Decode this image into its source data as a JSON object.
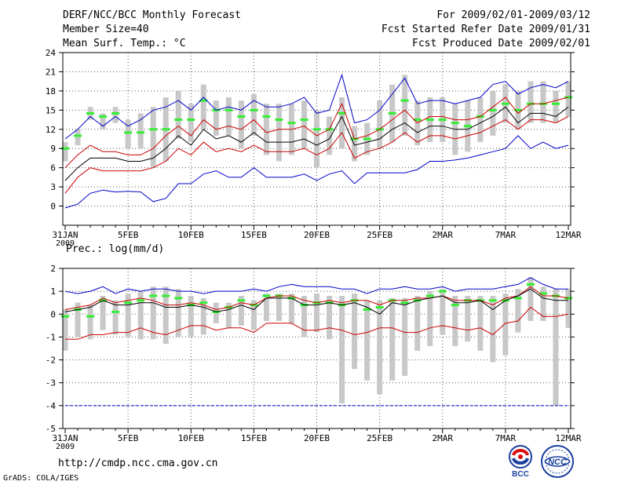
{
  "header": {
    "title": "DERF/NCC/BCC Monthly Forecast",
    "member_size": "Member Size=40",
    "variable": "Mean Surf. Temp.: °C",
    "period": "For 2009/02/01-2009/03/12",
    "start_refer": "Fcst Started Refer Date 2009/01/31",
    "produced": "Fcst Produced Date 2009/02/01"
  },
  "footer": {
    "url": "http://cmdp.ncc.cma.gov.cn",
    "grads": "GrADS: COLA/IGES",
    "logo_left_text": "BCC",
    "logo_right_text": "NCC"
  },
  "colors": {
    "blue": "#0000cc",
    "red": "#cc0000",
    "black": "#000000",
    "green": "#33ee33",
    "box": "#c8c8c8",
    "grid": "#555555"
  },
  "chart_data": [
    {
      "type": "line",
      "title": "Mean Surf. Temp.: °C",
      "ylabel": "°C",
      "ylim": [
        -3,
        24
      ],
      "yticks": [
        0,
        3,
        6,
        9,
        12,
        15,
        18,
        21,
        24
      ],
      "x_days": 40,
      "xtick_labels": [
        "31JAN",
        "5FEB",
        "10FEB",
        "15FEB",
        "20FEB",
        "25FEB",
        "2MAR",
        "7MAR",
        "12MAR"
      ],
      "xtick_days": [
        0,
        5,
        10,
        15,
        20,
        25,
        30,
        35,
        40
      ],
      "year_label": "2009",
      "series": [
        {
          "name": "max",
          "color": "blue",
          "values": [
            10.5,
            12,
            14,
            12.5,
            14,
            12.5,
            13.5,
            15,
            15.5,
            16.5,
            15,
            17,
            15,
            15.5,
            15,
            16.5,
            15.5,
            15.5,
            16,
            17,
            14.5,
            15,
            20.5,
            13,
            13.5,
            15,
            17.5,
            20,
            16,
            16.5,
            16.5,
            16,
            16.5,
            17,
            19,
            19.5,
            17.5,
            18.5,
            19,
            18.5,
            19.5
          ]
        },
        {
          "name": "p90",
          "color": "red",
          "values": [
            6,
            8,
            9.5,
            8.5,
            8.5,
            8,
            8,
            9,
            11,
            12.5,
            11,
            13.5,
            12,
            12.5,
            12,
            13.5,
            11.5,
            12,
            12,
            12.5,
            11,
            12,
            16,
            10.5,
            11,
            12,
            13.5,
            15,
            13,
            14,
            14,
            13.5,
            13.5,
            14,
            15.5,
            17,
            14.5,
            16,
            16,
            16.5,
            17
          ]
        },
        {
          "name": "mean",
          "color": "black",
          "values": [
            4,
            6,
            7.5,
            7.5,
            7.5,
            7,
            7,
            7.5,
            9,
            11,
            9.5,
            12,
            10.5,
            11,
            10,
            11.5,
            10,
            10,
            10,
            10.5,
            9.5,
            10.5,
            14,
            9.5,
            10,
            10.5,
            12,
            13,
            11.5,
            12.5,
            12.5,
            12,
            12,
            13,
            14,
            15.5,
            13,
            14.5,
            14.5,
            14,
            15.5
          ]
        },
        {
          "name": "p10",
          "color": "red",
          "values": [
            2,
            4.5,
            6,
            5.5,
            5.5,
            5.5,
            5.5,
            6,
            7,
            9,
            8,
            10,
            8.5,
            9,
            8.5,
            9.5,
            8.5,
            8.5,
            8.5,
            9,
            8,
            9,
            11.5,
            7.5,
            8.5,
            9,
            10,
            11.5,
            10,
            11,
            11,
            10.5,
            11,
            11.5,
            12.5,
            13.5,
            12,
            13.5,
            13.5,
            13,
            14
          ]
        },
        {
          "name": "min",
          "color": "blue",
          "values": [
            -0.3,
            0.3,
            2,
            2.5,
            2.2,
            2.3,
            2.2,
            0.7,
            1.2,
            3.5,
            3.5,
            5,
            5.5,
            4.5,
            4.5,
            6,
            4.5,
            4.5,
            4.5,
            5,
            4,
            5,
            5.5,
            3.5,
            5.2,
            5.2,
            5.2,
            5.2,
            5.7,
            7,
            7,
            7.2,
            7.5,
            8,
            8.5,
            9,
            11,
            9,
            10,
            9,
            9.5
          ]
        }
      ],
      "boxes": [
        {
          "low": 7,
          "high": 10,
          "median": 9
        },
        {
          "low": 9.5,
          "high": 12,
          "median": 11
        },
        {
          "low": 13.5,
          "high": 15.5,
          "median": 14.5
        },
        {
          "low": 12,
          "high": 14.5,
          "median": 14
        },
        {
          "low": 13,
          "high": 15.5,
          "median": 14.5
        },
        {
          "low": 9,
          "high": 13.5,
          "median": 11.5
        },
        {
          "low": 9,
          "high": 14.5,
          "median": 11.5
        },
        {
          "low": 6,
          "high": 15.5,
          "median": 12
        },
        {
          "low": 7,
          "high": 17,
          "median": 12
        },
        {
          "low": 10.5,
          "high": 18,
          "median": 13.5
        },
        {
          "low": 10,
          "high": 16,
          "median": 13.5
        },
        {
          "low": 12,
          "high": 19,
          "median": 16.5
        },
        {
          "low": 11,
          "high": 16.5,
          "median": 15
        },
        {
          "low": 11,
          "high": 17,
          "median": 15
        },
        {
          "low": 9,
          "high": 16.5,
          "median": 14
        },
        {
          "low": 11,
          "high": 17.5,
          "median": 15
        },
        {
          "low": 8,
          "high": 16,
          "median": 14
        },
        {
          "low": 7,
          "high": 16,
          "median": 13.5
        },
        {
          "low": 8,
          "high": 16,
          "median": 13
        },
        {
          "low": 9,
          "high": 16.5,
          "median": 13.5
        },
        {
          "low": 6,
          "high": 15,
          "median": 12
        },
        {
          "low": 8,
          "high": 14,
          "median": 12
        },
        {
          "low": 9,
          "high": 17,
          "median": 14.5
        },
        {
          "low": 7,
          "high": 12.5,
          "median": 10.5
        },
        {
          "low": 8,
          "high": 13,
          "median": 10.5
        },
        {
          "low": 9,
          "high": 16.5,
          "median": 12
        },
        {
          "low": 10,
          "high": 19,
          "median": 14.5
        },
        {
          "low": 11,
          "high": 20.5,
          "median": 16.5
        },
        {
          "low": 9.5,
          "high": 16.5,
          "median": 13.5
        },
        {
          "low": 10,
          "high": 17,
          "median": 13.5
        },
        {
          "low": 10,
          "high": 17,
          "median": 13.5
        },
        {
          "low": 8,
          "high": 16,
          "median": 13
        },
        {
          "low": 8.5,
          "high": 16.5,
          "median": 12.5
        },
        {
          "low": 10,
          "high": 17,
          "median": 14
        },
        {
          "low": 11,
          "high": 18,
          "median": 15
        },
        {
          "low": 13,
          "high": 19,
          "median": 16
        },
        {
          "low": 12,
          "high": 18,
          "median": 15
        },
        {
          "low": 13,
          "high": 19.5,
          "median": 16
        },
        {
          "low": 13,
          "high": 19.5,
          "median": 16
        },
        {
          "low": 13,
          "high": 18,
          "median": 16
        },
        {
          "low": 14,
          "high": 19.5,
          "median": 17
        }
      ]
    },
    {
      "type": "line",
      "title": "Prec.: log(mm/d)",
      "ylabel": "log(mm/d)",
      "ylim": [
        -5,
        2
      ],
      "yticks": [
        -5,
        -4,
        -3,
        -2,
        -1,
        0,
        1,
        2
      ],
      "x_days": 40,
      "xtick_labels": [
        "31JAN",
        "5FEB",
        "10FEB",
        "15FEB",
        "20FEB",
        "25FEB",
        "2MAR",
        "7MAR",
        "12MAR"
      ],
      "xtick_days": [
        0,
        5,
        10,
        15,
        20,
        25,
        30,
        35,
        40
      ],
      "year_label": "2009",
      "series": [
        {
          "name": "max",
          "color": "blue",
          "values": [
            1,
            0.9,
            1,
            1.2,
            0.9,
            1.1,
            1,
            1.1,
            1.1,
            1,
            1,
            0.9,
            1,
            1,
            1,
            1.1,
            1,
            1.2,
            1.3,
            1.2,
            1.2,
            1.2,
            1.1,
            1.1,
            0.9,
            1.1,
            1.1,
            1.2,
            1.1,
            1.1,
            1.2,
            1,
            1.1,
            1.1,
            1.1,
            1.2,
            1.3,
            1.6,
            1.3,
            1.1,
            1.1
          ]
        },
        {
          "name": "p90",
          "color": "red",
          "values": [
            0.2,
            0.3,
            0.4,
            0.7,
            0.5,
            0.6,
            0.7,
            0.6,
            0.4,
            0.4,
            0.5,
            0.4,
            0.2,
            0.3,
            0.5,
            0.4,
            0.7,
            0.8,
            0.8,
            0.6,
            0.5,
            0.6,
            0.5,
            0.6,
            0.6,
            0.4,
            0.6,
            0.6,
            0.7,
            0.7,
            0.8,
            0.6,
            0.6,
            0.6,
            0.4,
            0.7,
            0.8,
            1.2,
            0.8,
            0.8,
            0.7
          ]
        },
        {
          "name": "mean",
          "color": "black",
          "values": [
            0.1,
            0.2,
            0.3,
            0.6,
            0.4,
            0.4,
            0.5,
            0.5,
            0.3,
            0.3,
            0.4,
            0.3,
            0.1,
            0.2,
            0.4,
            0.2,
            0.7,
            0.7,
            0.7,
            0.4,
            0.4,
            0.5,
            0.4,
            0.5,
            0.3,
            0,
            0.5,
            0.4,
            0.6,
            0.7,
            0.8,
            0.5,
            0.5,
            0.6,
            0.2,
            0.6,
            0.8,
            1.1,
            0.7,
            0.6,
            0.6
          ]
        },
        {
          "name": "p10",
          "color": "red",
          "values": [
            -1.1,
            -1.1,
            -0.9,
            -0.9,
            -0.8,
            -0.8,
            -0.6,
            -0.8,
            -0.9,
            -0.7,
            -0.5,
            -0.5,
            -0.7,
            -0.6,
            -0.6,
            -0.8,
            -0.4,
            -0.4,
            -0.4,
            -0.7,
            -0.7,
            -0.6,
            -0.7,
            -0.9,
            -0.8,
            -0.6,
            -0.6,
            -0.8,
            -0.8,
            -0.6,
            -0.5,
            -0.6,
            -0.7,
            -0.6,
            -0.9,
            -0.4,
            -0.3,
            0.3,
            -0.1,
            -0.1,
            0
          ]
        },
        {
          "name": "min",
          "color": "blue",
          "values": [
            -4,
            -4,
            -4,
            -4,
            -4,
            -4,
            -4,
            -4,
            -4,
            -4,
            -4,
            -4,
            -4,
            -4,
            -4,
            -4,
            -4,
            -4,
            -4,
            -4,
            -4,
            -4,
            -4,
            -4,
            -4,
            -4,
            -4,
            -4,
            -4,
            -4,
            -4,
            -4,
            -4,
            -4,
            -4,
            -4,
            -4,
            -4,
            -4,
            -4,
            -4
          ]
        }
      ],
      "boxes": [
        {
          "low": -1.6,
          "high": 0.2,
          "median": -0.1
        },
        {
          "low": -1,
          "high": 0.5,
          "median": 0.2
        },
        {
          "low": -1.1,
          "high": 0.4,
          "median": -0.1
        },
        {
          "low": -0.7,
          "high": 0.8,
          "median": 0.6
        },
        {
          "low": -0.9,
          "high": 0.6,
          "median": 0.1
        },
        {
          "low": -1,
          "high": 0.9,
          "median": 0.5
        },
        {
          "low": -1.1,
          "high": 1,
          "median": 0.6
        },
        {
          "low": -1.1,
          "high": 1.2,
          "median": 0.8
        },
        {
          "low": -1.3,
          "high": 1.2,
          "median": 0.8
        },
        {
          "low": -1,
          "high": 1.1,
          "median": 0.7
        },
        {
          "low": -1,
          "high": 0.8,
          "median": 0.4
        },
        {
          "low": -0.9,
          "high": 0.7,
          "median": 0.5
        },
        {
          "low": -0.4,
          "high": 0.5,
          "median": 0.1
        },
        {
          "low": -0.6,
          "high": 0.5,
          "median": 0.3
        },
        {
          "low": -0.5,
          "high": 0.8,
          "median": 0.6
        },
        {
          "low": -0.7,
          "high": 0.6,
          "median": 0.4
        },
        {
          "low": -0.3,
          "high": 0.9,
          "median": 0.8
        },
        {
          "low": -0.3,
          "high": 0.9,
          "median": 0.8
        },
        {
          "low": -0.4,
          "high": 0.9,
          "median": 0.7
        },
        {
          "low": -1,
          "high": 0.8,
          "median": 0.4
        },
        {
          "low": -0.8,
          "high": 0.9,
          "median": 0.5
        },
        {
          "low": -1.1,
          "high": 0.8,
          "median": 0.5
        },
        {
          "low": -3.9,
          "high": 0.8,
          "median": 0.4
        },
        {
          "low": -2.4,
          "high": 0.9,
          "median": 0.6
        },
        {
          "low": -2.9,
          "high": 0.6,
          "median": 0.2
        },
        {
          "low": -3.5,
          "high": 0.6,
          "median": 0.3
        },
        {
          "low": -2.9,
          "high": 0.7,
          "median": 0.6
        },
        {
          "low": -2.7,
          "high": 0.7,
          "median": 0.5
        },
        {
          "low": -1.6,
          "high": 0.8,
          "median": 0.6
        },
        {
          "low": -1.4,
          "high": 1,
          "median": 0.8
        },
        {
          "low": -0.9,
          "high": 1.1,
          "median": 1
        },
        {
          "low": -1.4,
          "high": 0.8,
          "median": 0.4
        },
        {
          "low": -1.2,
          "high": 0.8,
          "median": 0.6
        },
        {
          "low": -1.6,
          "high": 0.8,
          "median": 0.6
        },
        {
          "low": -2.1,
          "high": 0.8,
          "median": 0.6
        },
        {
          "low": -1.8,
          "high": 0.9,
          "median": 0.6
        },
        {
          "low": -0.8,
          "high": 1.1,
          "median": 0.7
        },
        {
          "low": -0.3,
          "high": 1.6,
          "median": 1.3
        },
        {
          "low": -0.3,
          "high": 1.2,
          "median": 0.9
        },
        {
          "low": -4,
          "high": 1.1,
          "median": 0.8
        },
        {
          "low": -0.6,
          "high": 1.1,
          "median": 0.7
        }
      ]
    }
  ]
}
